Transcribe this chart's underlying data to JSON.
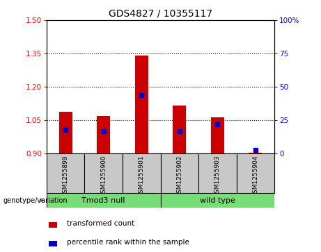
{
  "title": "GDS4827 / 10355117",
  "samples": [
    "GSM1255899",
    "GSM1255900",
    "GSM1255901",
    "GSM1255902",
    "GSM1255903",
    "GSM1255904"
  ],
  "groups": [
    {
      "label": "Tmod3 null",
      "indices": [
        0,
        1,
        2
      ],
      "color": "#77dd77"
    },
    {
      "label": "wild type",
      "indices": [
        3,
        4,
        5
      ],
      "color": "#77dd77"
    }
  ],
  "bar_bottom": 0.9,
  "transformed_counts": [
    1.09,
    1.07,
    1.34,
    1.115,
    1.065,
    0.905
  ],
  "percentile_ranks": [
    18,
    17,
    44,
    17,
    22,
    3
  ],
  "ylim_left": [
    0.9,
    1.5
  ],
  "ylim_right": [
    0,
    100
  ],
  "yticks_left": [
    0.9,
    1.05,
    1.2,
    1.35,
    1.5
  ],
  "yticks_right": [
    0,
    25,
    50,
    75,
    100
  ],
  "bar_color": "#cc0000",
  "dot_color": "#0000cc",
  "bg_color": "#c8c8c8",
  "plot_bg": "#ffffff",
  "title_fontsize": 10,
  "bar_width": 0.35,
  "gridlines": [
    1.05,
    1.2,
    1.35
  ]
}
